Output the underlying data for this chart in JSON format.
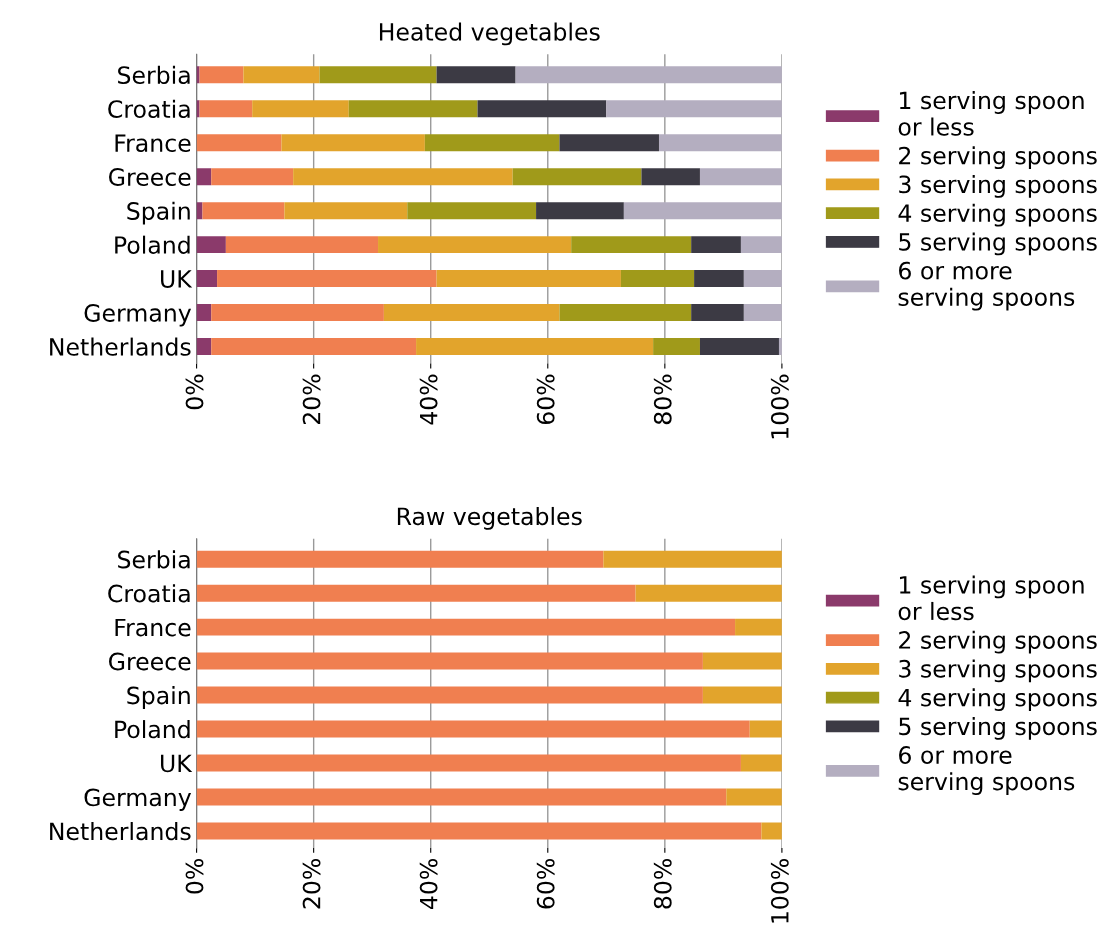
{
  "chart_data": [
    {
      "type": "bar",
      "title": "Heated vegetables",
      "orientation": "horizontal",
      "stacked": true,
      "grid": "x",
      "legend": "right",
      "categories": [
        "Serbia",
        "Croatia",
        "France",
        "Greece",
        "Spain",
        "Poland",
        "UK",
        "Germany",
        "Netherlands"
      ],
      "xlim": [
        0,
        100
      ],
      "xticks": [
        {
          "value": 0,
          "label": "0%"
        },
        {
          "value": 20,
          "label": "20%"
        },
        {
          "value": 40,
          "label": "40%"
        },
        {
          "value": 60,
          "label": "60%"
        },
        {
          "value": 80,
          "label": "80%"
        },
        {
          "value": 100,
          "label": "100%"
        }
      ],
      "series": [
        {
          "name": "1 serving spoon or less",
          "color": "#8b3a6b",
          "values": [
            0.5,
            0.5,
            0,
            2.5,
            1,
            5,
            3.5,
            2.5,
            2.5
          ]
        },
        {
          "name": "2 serving spoons",
          "color": "#f07f50",
          "values": [
            7.5,
            9,
            14.5,
            14,
            14,
            26,
            37.5,
            29.5,
            35
          ]
        },
        {
          "name": "3 serving spoons",
          "color": "#e2a42c",
          "values": [
            13,
            16.5,
            24.5,
            37.5,
            21,
            33,
            31.5,
            30,
            40.5
          ]
        },
        {
          "name": "4 serving spoons",
          "color": "#a09a1a",
          "values": [
            20,
            22,
            23,
            22,
            22,
            20.5,
            12.5,
            22.5,
            8
          ]
        },
        {
          "name": "5 serving spoons",
          "color": "#3c3a44",
          "values": [
            13.5,
            22,
            17,
            10,
            15,
            8.5,
            8.5,
            9,
            13.5
          ]
        },
        {
          "name": "6 or more serving spoons",
          "color": "#b4aec0",
          "values": [
            45.5,
            30,
            21,
            14,
            27,
            7,
            6.5,
            6.5,
            0.5
          ]
        }
      ]
    },
    {
      "type": "bar",
      "title": "Raw vegetables",
      "orientation": "horizontal",
      "stacked": true,
      "grid": "x",
      "legend": "right",
      "categories": [
        "Serbia",
        "Croatia",
        "France",
        "Greece",
        "Spain",
        "Poland",
        "UK",
        "Germany",
        "Netherlands"
      ],
      "xlim": [
        0,
        100
      ],
      "xticks": [
        {
          "value": 0,
          "label": "0%"
        },
        {
          "value": 20,
          "label": "20%"
        },
        {
          "value": 40,
          "label": "40%"
        },
        {
          "value": 60,
          "label": "60%"
        },
        {
          "value": 80,
          "label": "80%"
        },
        {
          "value": 100,
          "label": "100%"
        }
      ],
      "series": [
        {
          "name": "1 serving spoon or less",
          "color": "#8b3a6b",
          "values": [
            0,
            0,
            0,
            0,
            0,
            0,
            0,
            0,
            0
          ]
        },
        {
          "name": "2 serving spoons",
          "color": "#f07f50",
          "values": [
            69.5,
            75,
            92,
            86.5,
            86.5,
            94.5,
            93,
            90.5,
            96.5
          ]
        },
        {
          "name": "3 serving spoons",
          "color": "#e2a42c",
          "values": [
            30.5,
            25,
            8,
            13.5,
            13.5,
            5.5,
            7,
            9.5,
            3.5
          ]
        },
        {
          "name": "4 serving spoons",
          "color": "#a09a1a",
          "values": [
            0,
            0,
            0,
            0,
            0,
            0,
            0,
            0,
            0
          ]
        },
        {
          "name": "5 serving spoons",
          "color": "#3c3a44",
          "values": [
            0,
            0,
            0,
            0,
            0,
            0,
            0,
            0,
            0
          ]
        },
        {
          "name": "6 or more serving spoons",
          "color": "#b4aec0",
          "values": [
            0,
            0,
            0,
            0,
            0,
            0,
            0,
            0,
            0
          ]
        }
      ]
    }
  ]
}
